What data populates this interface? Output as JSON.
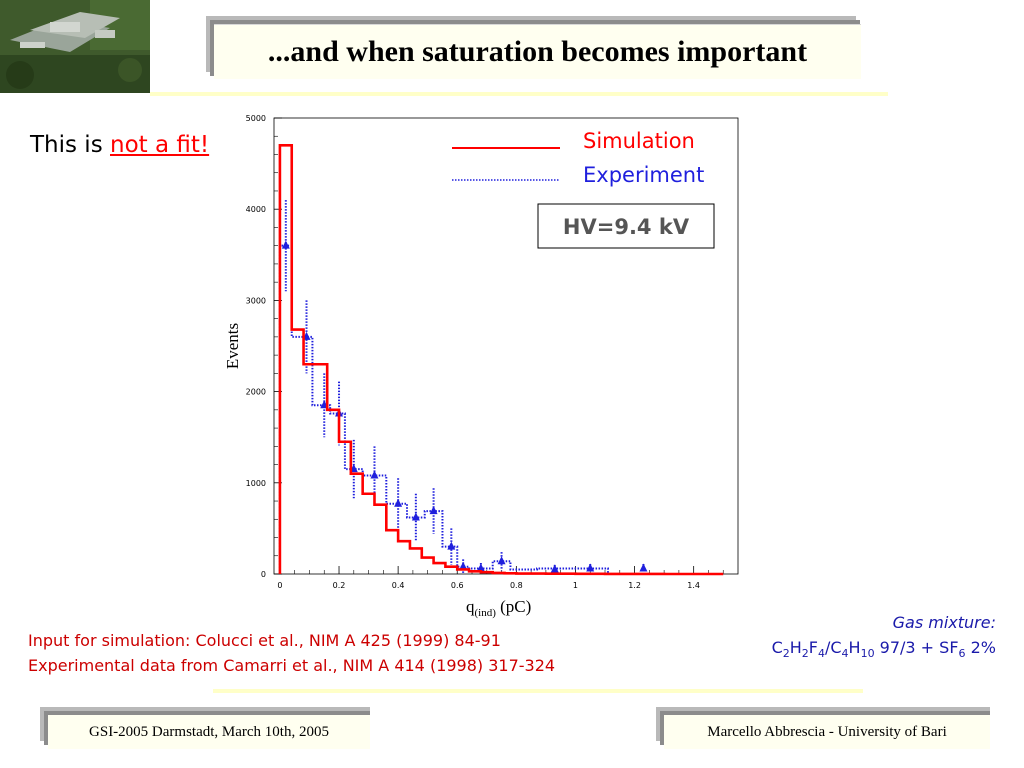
{
  "slide": {
    "title": "...and when saturation becomes important",
    "note_prefix": "This is ",
    "note_highlight": "not a fit!",
    "ref_sim": "Input for simulation: Colucci et al., NIM A 425 (1999) 84-91",
    "ref_exp": "Experimental data from Camarri et al., NIM A 414 (1998) 317-324",
    "gas_label": "Gas mixture:",
    "gas_parts": [
      "C",
      "2",
      "H",
      "2",
      "F",
      "4",
      "/C",
      "4",
      "H",
      "10",
      " 97/3 + SF",
      "6",
      " 2%"
    ],
    "footer_left": "GSI-2005 Darmstadt, March 10th, 2005",
    "footer_right": "Marcello Abbrescia - University of Bari"
  },
  "colors": {
    "simulation": "#ff0000",
    "experiment": "#1f1fdd",
    "reference_text": "#cc0000",
    "gas_text": "#1a1aaa",
    "title_bg": "#fffff0",
    "rule": "#ffffc8"
  },
  "chart_data": {
    "type": "line",
    "title": "",
    "xlabel_main": "q",
    "xlabel_sub": "(ind)",
    "xlabel_unit": " (pC)",
    "ylabel": "Events",
    "xlim": [
      -0.02,
      1.55
    ],
    "ylim": [
      0,
      5000
    ],
    "xticks": [
      0,
      0.2,
      0.4,
      0.6,
      0.8,
      1,
      1.2,
      1.4
    ],
    "xtick_labels": [
      "0",
      "0.2",
      "0.4",
      "0.6",
      "0.8",
      "1",
      "1.2",
      "1.4"
    ],
    "yticks": [
      0,
      1000,
      2000,
      3000,
      4000,
      5000
    ],
    "ytick_labels": [
      "0",
      "1000",
      "2000",
      "3000",
      "4000",
      "5000"
    ],
    "annotation": "HV=9.4 kV",
    "legend_position": "top-right",
    "series": [
      {
        "name": "Simulation",
        "style": "solid-step",
        "bin_edges": [
          0,
          0.04,
          0.08,
          0.16,
          0.2,
          0.24,
          0.28,
          0.32,
          0.36,
          0.4,
          0.44,
          0.48,
          0.52,
          0.56,
          0.6,
          0.64,
          0.68,
          0.72,
          0.76,
          0.8,
          0.9,
          1.0,
          1.1,
          1.2,
          1.3,
          1.4,
          1.5
        ],
        "values": [
          4700,
          2680,
          2300,
          1800,
          1450,
          1100,
          880,
          760,
          480,
          360,
          280,
          180,
          120,
          80,
          50,
          30,
          20,
          12,
          8,
          5,
          3,
          2,
          1,
          1,
          0,
          0
        ]
      },
      {
        "name": "Experiment",
        "style": "dotted-step-with-errors",
        "x": [
          0.02,
          0.09,
          0.15,
          0.2,
          0.25,
          0.32,
          0.4,
          0.46,
          0.52,
          0.58,
          0.62,
          0.68,
          0.75,
          0.93,
          1.05,
          1.23
        ],
        "y": [
          3600,
          2600,
          1850,
          1760,
          1150,
          1080,
          770,
          620,
          690,
          300,
          80,
          60,
          140,
          50,
          60,
          60
        ],
        "err": [
          500,
          400,
          350,
          350,
          320,
          320,
          280,
          260,
          250,
          200,
          80,
          60,
          100,
          50,
          50,
          50
        ],
        "bin_edges": [
          0,
          0.04,
          0.11,
          0.17,
          0.22,
          0.28,
          0.36,
          0.43,
          0.49,
          0.55,
          0.6,
          0.64,
          0.72,
          0.78,
          0.87,
          0.99,
          1.11,
          1.2,
          1.27
        ]
      }
    ]
  }
}
